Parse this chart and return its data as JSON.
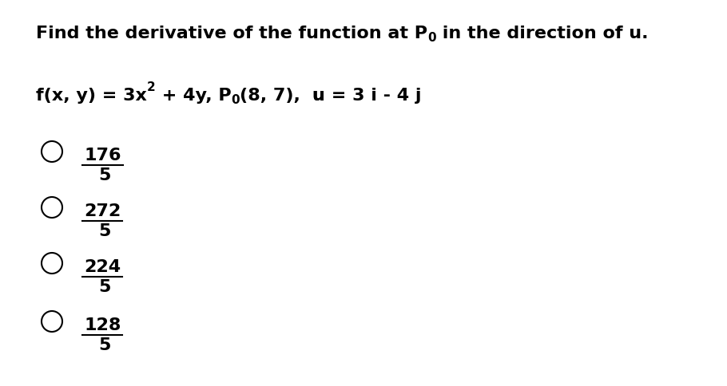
{
  "title_part1": "Find the derivative of the function at P",
  "title_sub0": "0",
  "title_part2": " in the direction of u.",
  "func_part1": "f(x, y) = 3x",
  "func_exp": "2",
  "func_part2": " + 4y, P",
  "func_sub0": "0",
  "func_part3": "(8, 7),",
  "func_u": "  u",
  "func_eq": " = 3 i - 4 j",
  "options": [
    {
      "numerator": "176",
      "denominator": "5"
    },
    {
      "numerator": "272",
      "denominator": "5"
    },
    {
      "numerator": "224",
      "denominator": "5"
    },
    {
      "numerator": "128",
      "denominator": "5"
    }
  ],
  "background_color": "#ffffff",
  "text_color": "#000000",
  "title_fontsize": 16,
  "body_fontsize": 16,
  "option_fontsize": 16,
  "sub_fontsize": 11,
  "sup_fontsize": 11
}
